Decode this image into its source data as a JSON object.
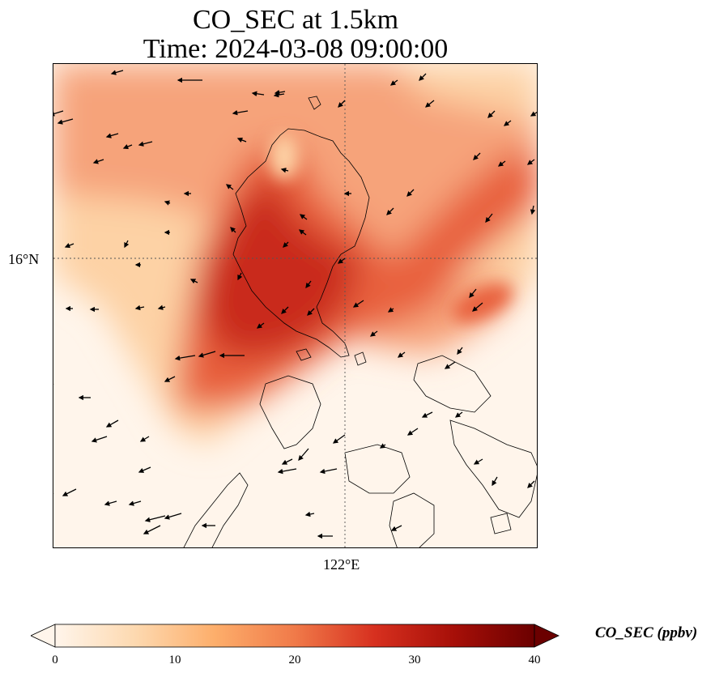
{
  "title": {
    "line1": "CO_SEC at 1.5km",
    "line2": "Time: 2024-03-08 09:00:00"
  },
  "axes": {
    "lat_label": "16°N",
    "lon_label": "122°E"
  },
  "colorbar": {
    "label": "CO_SEC (ppbv)",
    "min": 0,
    "max": 40,
    "ticks": [
      "0",
      "10",
      "20",
      "30",
      "40"
    ],
    "colors": [
      "#fff5eb",
      "#fdd9b0",
      "#fdae6b",
      "#f07a49",
      "#d7301f",
      "#a60f08",
      "#6b0000"
    ],
    "extend": "both"
  },
  "map": {
    "gridlines": "dotted",
    "field_colors": {
      "background": "#fff5eb",
      "low": "#fdd2a5",
      "mid": "#f6a37a",
      "high": "#e8603c",
      "peak": "#c9291c"
    },
    "vector_color": "#000000",
    "coastline_color": "#000000"
  }
}
